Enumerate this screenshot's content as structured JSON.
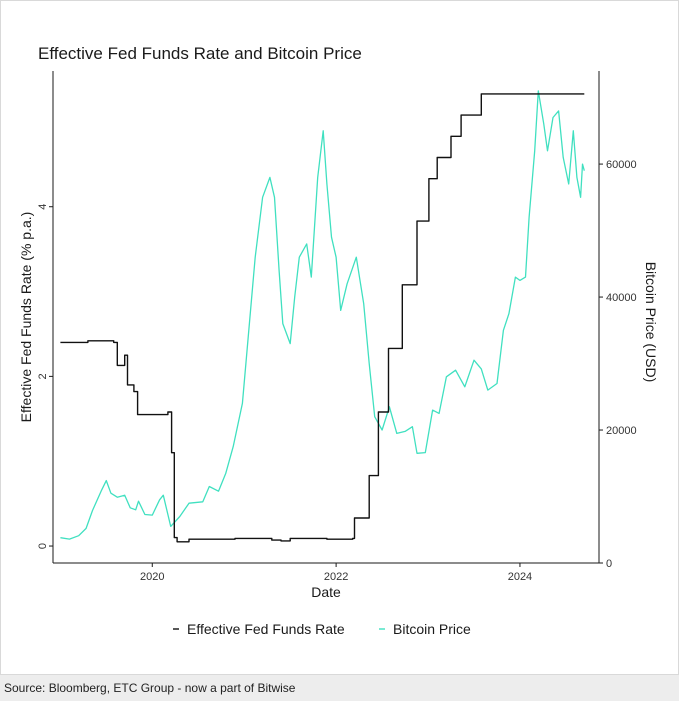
{
  "chart_data": {
    "type": "line",
    "title": "Effective Fed Funds Rate and Bitcoin Price",
    "xlabel": "Date",
    "ylabel_left": "Effective Fed Funds Rate (% p.a.)",
    "ylabel_right": "Bitcoin Price (USD)",
    "x_range": [
      2018.92,
      2024.86
    ],
    "y_left_range": [
      -0.2,
      5.6
    ],
    "y_right_range": [
      0,
      74000
    ],
    "x_ticks": [
      {
        "value": 2020,
        "label": "2020"
      },
      {
        "value": 2022,
        "label": "2022"
      },
      {
        "value": 2024,
        "label": "2024"
      }
    ],
    "y_left_ticks": [
      {
        "value": 0,
        "label": "0"
      },
      {
        "value": 2,
        "label": "2"
      },
      {
        "value": 4,
        "label": "4"
      }
    ],
    "y_right_ticks": [
      {
        "value": 0,
        "label": "0"
      },
      {
        "value": 20000,
        "label": "20000"
      },
      {
        "value": 40000,
        "label": "40000"
      },
      {
        "value": 60000,
        "label": "60000"
      }
    ],
    "legend_position": "bottom",
    "grid": false,
    "series": [
      {
        "name": "Effective Fed Funds Rate",
        "axis": "left",
        "color": "#111111",
        "step": true,
        "points": [
          [
            2019.0,
            2.4
          ],
          [
            2019.3,
            2.42
          ],
          [
            2019.58,
            2.4
          ],
          [
            2019.62,
            2.13
          ],
          [
            2019.7,
            2.25
          ],
          [
            2019.73,
            1.9
          ],
          [
            2019.8,
            1.82
          ],
          [
            2019.84,
            1.55
          ],
          [
            2020.17,
            1.58
          ],
          [
            2020.21,
            1.1
          ],
          [
            2020.24,
            0.1
          ],
          [
            2020.27,
            0.05
          ],
          [
            2020.4,
            0.08
          ],
          [
            2020.9,
            0.09
          ],
          [
            2021.3,
            0.07
          ],
          [
            2021.4,
            0.06
          ],
          [
            2021.5,
            0.09
          ],
          [
            2021.9,
            0.08
          ],
          [
            2022.18,
            0.09
          ],
          [
            2022.2,
            0.33
          ],
          [
            2022.36,
            0.83
          ],
          [
            2022.46,
            1.58
          ],
          [
            2022.57,
            2.33
          ],
          [
            2022.72,
            3.08
          ],
          [
            2022.88,
            3.83
          ],
          [
            2023.01,
            4.33
          ],
          [
            2023.1,
            4.58
          ],
          [
            2023.25,
            4.83
          ],
          [
            2023.36,
            5.08
          ],
          [
            2023.58,
            5.33
          ],
          [
            2024.7,
            5.33
          ]
        ]
      },
      {
        "name": "Bitcoin Price",
        "axis": "right",
        "color": "#40e0c0",
        "step": false,
        "points": [
          [
            2019.0,
            3800
          ],
          [
            2019.1,
            3600
          ],
          [
            2019.2,
            4100
          ],
          [
            2019.28,
            5200
          ],
          [
            2019.35,
            7900
          ],
          [
            2019.45,
            11000
          ],
          [
            2019.5,
            12400
          ],
          [
            2019.55,
            10500
          ],
          [
            2019.62,
            9900
          ],
          [
            2019.7,
            10200
          ],
          [
            2019.76,
            8300
          ],
          [
            2019.82,
            8000
          ],
          [
            2019.85,
            9300
          ],
          [
            2019.92,
            7300
          ],
          [
            2020.0,
            7200
          ],
          [
            2020.08,
            9500
          ],
          [
            2020.12,
            10200
          ],
          [
            2020.2,
            5500
          ],
          [
            2020.3,
            7000
          ],
          [
            2020.4,
            9000
          ],
          [
            2020.55,
            9200
          ],
          [
            2020.62,
            11500
          ],
          [
            2020.72,
            10800
          ],
          [
            2020.8,
            13500
          ],
          [
            2020.88,
            17500
          ],
          [
            2020.98,
            24000
          ],
          [
            2021.05,
            35000
          ],
          [
            2021.12,
            46000
          ],
          [
            2021.2,
            55000
          ],
          [
            2021.28,
            58000
          ],
          [
            2021.33,
            55000
          ],
          [
            2021.38,
            44000
          ],
          [
            2021.42,
            36000
          ],
          [
            2021.5,
            33000
          ],
          [
            2021.55,
            40000
          ],
          [
            2021.6,
            46000
          ],
          [
            2021.68,
            48000
          ],
          [
            2021.73,
            43000
          ],
          [
            2021.8,
            58000
          ],
          [
            2021.86,
            65000
          ],
          [
            2021.9,
            57000
          ],
          [
            2021.95,
            49000
          ],
          [
            2022.0,
            46000
          ],
          [
            2022.05,
            38000
          ],
          [
            2022.12,
            42000
          ],
          [
            2022.22,
            46000
          ],
          [
            2022.3,
            39000
          ],
          [
            2022.36,
            30000
          ],
          [
            2022.42,
            22000
          ],
          [
            2022.5,
            20000
          ],
          [
            2022.58,
            23500
          ],
          [
            2022.66,
            19500
          ],
          [
            2022.75,
            19800
          ],
          [
            2022.83,
            20500
          ],
          [
            2022.88,
            16500
          ],
          [
            2022.97,
            16600
          ],
          [
            2023.05,
            23000
          ],
          [
            2023.12,
            22500
          ],
          [
            2023.2,
            28000
          ],
          [
            2023.3,
            29000
          ],
          [
            2023.4,
            26500
          ],
          [
            2023.5,
            30500
          ],
          [
            2023.58,
            29200
          ],
          [
            2023.65,
            26000
          ],
          [
            2023.75,
            27000
          ],
          [
            2023.82,
            35000
          ],
          [
            2023.88,
            37500
          ],
          [
            2023.95,
            43000
          ],
          [
            2024.0,
            42500
          ],
          [
            2024.06,
            43000
          ],
          [
            2024.1,
            52000
          ],
          [
            2024.16,
            62000
          ],
          [
            2024.2,
            71000
          ],
          [
            2024.26,
            66000
          ],
          [
            2024.3,
            62000
          ],
          [
            2024.36,
            67000
          ],
          [
            2024.42,
            68000
          ],
          [
            2024.47,
            61000
          ],
          [
            2024.53,
            57000
          ],
          [
            2024.58,
            65000
          ],
          [
            2024.62,
            58000
          ],
          [
            2024.66,
            55000
          ],
          [
            2024.68,
            60000
          ],
          [
            2024.7,
            59000
          ]
        ]
      }
    ]
  },
  "source": "Source: Bloomberg, ETC Group - now a part of Bitwise"
}
